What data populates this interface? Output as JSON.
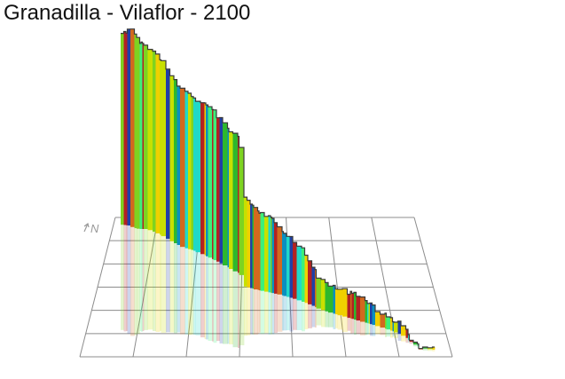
{
  "title": "Granadilla - Vilaflor - 2100",
  "north_label": "N",
  "colors": {
    "grid": "#8c8c8c",
    "outline": "#3a3a3a",
    "reflection_opacity": "0.22",
    "gradient_palette": [
      "#2db82d",
      "#7ed321",
      "#c8e000",
      "#f0d000",
      "#d2691e",
      "#b22222",
      "#0a8fbf",
      "#1f3fa8",
      "#20d8c8",
      "#3cf07a"
    ]
  }
}
